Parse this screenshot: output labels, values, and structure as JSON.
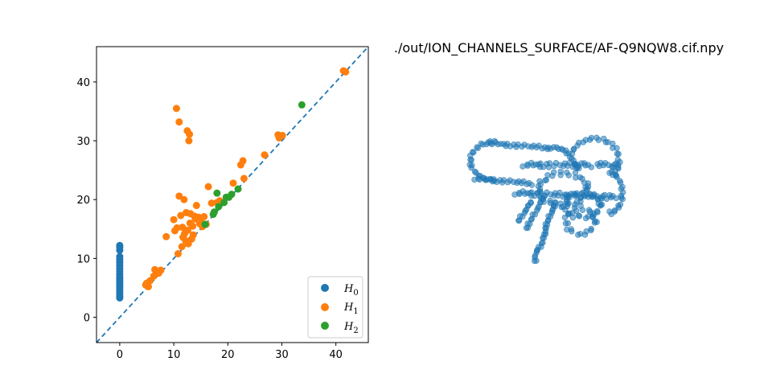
{
  "chart_data": [
    {
      "type": "scatter",
      "title": "",
      "xlabel": "",
      "ylabel": "",
      "xlim": [
        -4.3,
        46
      ],
      "ylim": [
        -4.3,
        46
      ],
      "grid": false,
      "legend_position": "bottom-right",
      "xticks": [
        "0",
        "10",
        "20",
        "30",
        "40"
      ],
      "yticks": [
        "0",
        "10",
        "20",
        "30",
        "40"
      ],
      "diagonal": {
        "style": "dashed",
        "color": "#1f77b4"
      },
      "series": [
        {
          "name": "H",
          "subscript": "0",
          "color": "#1f77b4",
          "points": [
            [
              0,
              3.3
            ],
            [
              0,
              3.6
            ],
            [
              0,
              4.0
            ],
            [
              0,
              4.4
            ],
            [
              0,
              4.8
            ],
            [
              0,
              5.2
            ],
            [
              0,
              5.6
            ],
            [
              0,
              6.0
            ],
            [
              0,
              6.4
            ],
            [
              0,
              6.8
            ],
            [
              0,
              7.3
            ],
            [
              0,
              7.8
            ],
            [
              0,
              8.3
            ],
            [
              0,
              8.8
            ],
            [
              0,
              9.3
            ],
            [
              0,
              9.8
            ],
            [
              0,
              10.3
            ],
            [
              0,
              11.4
            ],
            [
              0,
              11.9
            ],
            [
              0,
              12.2
            ]
          ]
        },
        {
          "name": "H",
          "subscript": "1",
          "color": "#ff7f0e",
          "points": [
            [
              4.8,
              5.5
            ],
            [
              5.0,
              5.8
            ],
            [
              5.3,
              5.2
            ],
            [
              5.6,
              6.2
            ],
            [
              6.3,
              7.0
            ],
            [
              6.5,
              8.1
            ],
            [
              7.2,
              7.5
            ],
            [
              7.6,
              8.0
            ],
            [
              8.6,
              13.7
            ],
            [
              10.0,
              16.6
            ],
            [
              10.2,
              14.7
            ],
            [
              10.6,
              15.2
            ],
            [
              10.8,
              10.8
            ],
            [
              10.5,
              35.5
            ],
            [
              11.0,
              20.6
            ],
            [
              11.0,
              33.2
            ],
            [
              11.3,
              17.3
            ],
            [
              11.5,
              12.0
            ],
            [
              11.6,
              15.3
            ],
            [
              11.7,
              13.6
            ],
            [
              11.9,
              20.0
            ],
            [
              12.0,
              14.2
            ],
            [
              12.2,
              13.0
            ],
            [
              12.3,
              17.8
            ],
            [
              12.5,
              31.7
            ],
            [
              12.6,
              14.8
            ],
            [
              12.7,
              12.5
            ],
            [
              12.8,
              30.0
            ],
            [
              12.9,
              31.1
            ],
            [
              13.0,
              16.0
            ],
            [
              13.1,
              17.6
            ],
            [
              13.3,
              13.3
            ],
            [
              13.5,
              15.5
            ],
            [
              13.6,
              14.0
            ],
            [
              13.8,
              17.2
            ],
            [
              14.0,
              16.7
            ],
            [
              14.2,
              19.0
            ],
            [
              14.6,
              17.0
            ],
            [
              14.8,
              15.9
            ],
            [
              15.0,
              16.2
            ],
            [
              15.3,
              15.4
            ],
            [
              15.6,
              17.1
            ],
            [
              16.0,
              15.8
            ],
            [
              16.4,
              22.2
            ],
            [
              17.0,
              19.4
            ],
            [
              18.0,
              19.5
            ],
            [
              18.5,
              19.8
            ],
            [
              21.0,
              22.8
            ],
            [
              22.4,
              25.9
            ],
            [
              22.8,
              26.6
            ],
            [
              23.0,
              23.6
            ],
            [
              26.8,
              27.6
            ],
            [
              29.3,
              31.0
            ],
            [
              29.5,
              30.5
            ],
            [
              30.1,
              30.9
            ],
            [
              41.4,
              41.9
            ],
            [
              41.8,
              41.7
            ]
          ]
        },
        {
          "name": "H",
          "subscript": "2",
          "color": "#2ca02c",
          "points": [
            [
              15.8,
              15.8
            ],
            [
              17.3,
              17.5
            ],
            [
              17.5,
              17.9
            ],
            [
              18.0,
              21.1
            ],
            [
              18.3,
              18.8
            ],
            [
              19.3,
              19.5
            ],
            [
              19.7,
              20.4
            ],
            [
              20.2,
              20.4
            ],
            [
              20.7,
              20.9
            ],
            [
              21.9,
              21.8
            ],
            [
              33.7,
              36.1
            ]
          ]
        }
      ]
    },
    {
      "type": "scatter",
      "title": "./out/ION_CHANNELS_SURFACE/AF-Q9NQW8.cif.npy",
      "xlabel": "",
      "ylabel": "",
      "axes": "off",
      "color": "#1f77b4",
      "description_points": "3D protein surface point cloud projection"
    }
  ]
}
